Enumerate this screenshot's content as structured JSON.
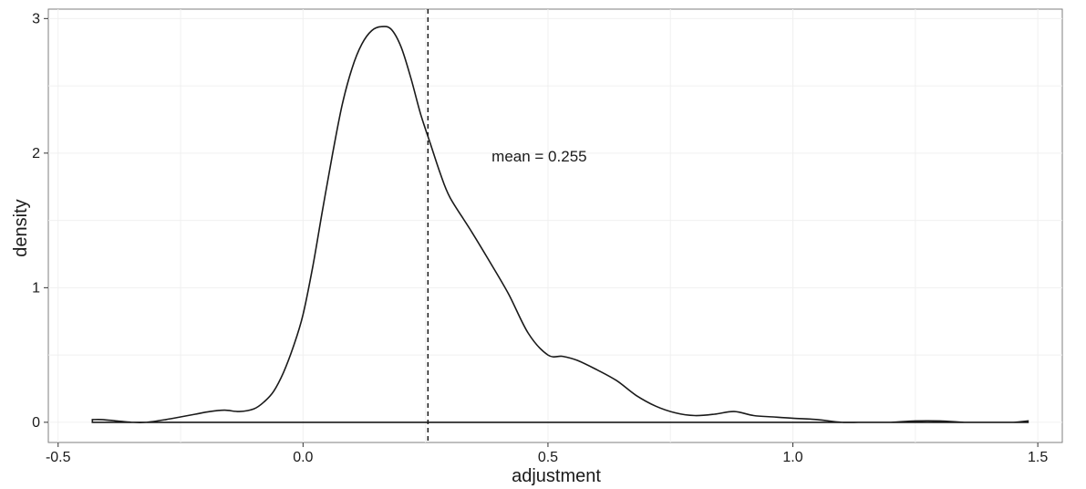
{
  "chart_data": {
    "type": "area",
    "xlabel": "adjustment",
    "ylabel": "density",
    "xlim": [
      -0.52,
      1.55
    ],
    "ylim": [
      -0.15,
      3.07
    ],
    "xticks": [
      -0.5,
      0.0,
      0.5,
      1.0,
      1.5
    ],
    "xtick_labels": [
      "-0.5",
      "0.0",
      "0.5",
      "1.0",
      "1.5"
    ],
    "yticks": [
      0,
      1,
      2,
      3
    ],
    "ytick_labels": [
      "0",
      "1",
      "2",
      "3"
    ],
    "grid": true,
    "mean_line": {
      "x": 0.255,
      "style": "dashed"
    },
    "annotation": {
      "text": "mean = 0.255",
      "x": 0.385,
      "y": 1.98
    },
    "series": [
      {
        "x": [
          -0.43,
          -0.41,
          -0.38,
          -0.35,
          -0.32,
          -0.28,
          -0.25,
          -0.22,
          -0.19,
          -0.16,
          -0.13,
          -0.1,
          -0.08,
          -0.06,
          -0.04,
          -0.02,
          0.0,
          0.02,
          0.04,
          0.06,
          0.08,
          0.1,
          0.12,
          0.14,
          0.16,
          0.18,
          0.2,
          0.22,
          0.24,
          0.26,
          0.28,
          0.3,
          0.34,
          0.38,
          0.42,
          0.46,
          0.5,
          0.53,
          0.56,
          0.6,
          0.64,
          0.68,
          0.72,
          0.76,
          0.8,
          0.84,
          0.88,
          0.92,
          0.96,
          1.0,
          1.05,
          1.1,
          1.15,
          1.2,
          1.25,
          1.3,
          1.35,
          1.4,
          1.45,
          1.48
        ],
        "y": [
          0.02,
          0.02,
          0.01,
          0.0,
          0.0,
          0.02,
          0.04,
          0.06,
          0.08,
          0.09,
          0.08,
          0.1,
          0.15,
          0.23,
          0.37,
          0.56,
          0.8,
          1.16,
          1.58,
          1.99,
          2.36,
          2.63,
          2.81,
          2.91,
          2.94,
          2.92,
          2.79,
          2.56,
          2.29,
          2.07,
          1.85,
          1.67,
          1.44,
          1.2,
          0.95,
          0.66,
          0.5,
          0.49,
          0.46,
          0.39,
          0.31,
          0.2,
          0.12,
          0.07,
          0.05,
          0.06,
          0.08,
          0.05,
          0.04,
          0.03,
          0.02,
          0.0,
          0.0,
          0.0,
          0.01,
          0.01,
          0.0,
          0.0,
          0.0,
          0.01
        ]
      }
    ]
  }
}
